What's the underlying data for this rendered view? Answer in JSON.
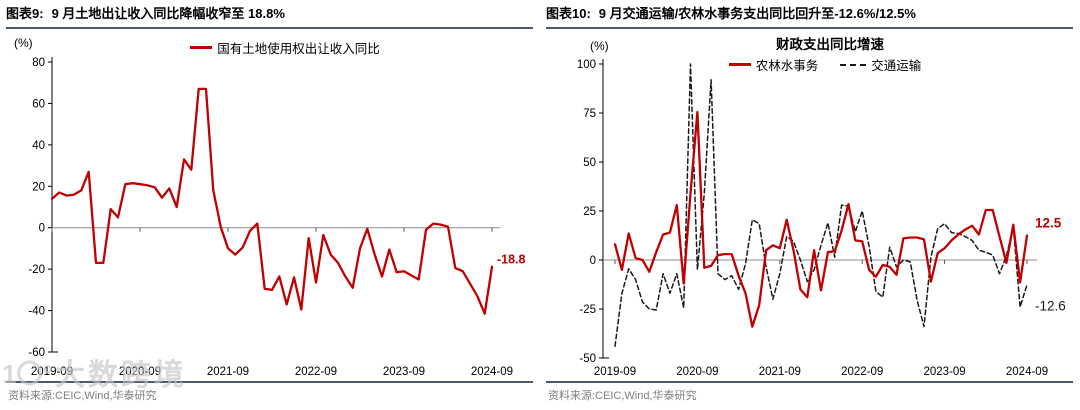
{
  "watermark": {
    "logo_text": "1〇°",
    "text": "大数跨境"
  },
  "chart_data": [
    {
      "type": "line",
      "figure_label": "图表9:",
      "figure_title": "9 月土地出让收入同比降幅收窄至 18.8%",
      "unit": "(%)",
      "source": "资料来源:CEIC,Wind,华泰研究",
      "x_start": "2019-09",
      "x_end": "2024-09",
      "x_interval": "monthly",
      "x_tick_labels": [
        "2019-09",
        "2020-09",
        "2021-09",
        "2022-09",
        "2023-09",
        "2024-09"
      ],
      "ylim": [
        -60,
        80
      ],
      "y_ticks": [
        80,
        60,
        40,
        20,
        0,
        -20,
        -40,
        -60
      ],
      "grid": "zero-line-only",
      "legend_position": "top",
      "series": [
        {
          "name": "国有土地使用权出让收入同比",
          "color": "#c00000",
          "line_style": "solid",
          "end_label": "-18.8",
          "values": [
            14,
            17,
            15.5,
            16,
            18,
            27,
            -17,
            -17,
            9,
            5,
            21,
            21.5,
            21,
            20.5,
            19.5,
            14.5,
            19,
            10,
            33,
            28,
            67,
            67,
            18,
            0.5,
            -10,
            -13,
            -9.5,
            -1.5,
            2,
            -29.5,
            -30,
            -23.5,
            -37,
            -24,
            -39.5,
            -5,
            -26.5,
            -3.5,
            -13,
            -17,
            -23.5,
            -29,
            -10,
            -0.5,
            -13,
            -23.5,
            -10.5,
            -21.5,
            -21,
            -23,
            -25,
            -1,
            2,
            1.5,
            0.5,
            -19.5,
            -21,
            -27,
            -33,
            -41.5,
            -18.8
          ]
        }
      ]
    },
    {
      "type": "line",
      "figure_label": "图表10:",
      "figure_title": "9 月交通运输/农林水事务支出同比回升至-12.6%/12.5%",
      "title": "财政支出同比增速",
      "unit": "(%)",
      "source": "资料来源:CEIC,Wind,华泰研究",
      "x_start": "2019-09",
      "x_end": "2024-09",
      "x_interval": "monthly",
      "x_tick_labels": [
        "2019-09",
        "2020-09",
        "2021-09",
        "2022-09",
        "2023-09",
        "2024-09"
      ],
      "ylim": [
        -50,
        100
      ],
      "y_ticks": [
        100,
        75,
        50,
        25,
        0,
        -25,
        -50
      ],
      "grid": "zero-line-only",
      "legend_position": "top",
      "series": [
        {
          "name": "农林水事务",
          "color": "#c00000",
          "line_style": "solid",
          "end_label": "12.5",
          "values": [
            8,
            -5,
            13.5,
            1,
            0,
            -6,
            4,
            13,
            14,
            28,
            -12,
            34,
            75.5,
            -4,
            -3,
            2.5,
            3,
            3,
            -8,
            -17,
            -34,
            -23,
            5,
            7.5,
            6,
            20.5,
            5,
            -15,
            -19,
            5,
            -15.5,
            4,
            4.5,
            15,
            28.5,
            10,
            9.5,
            -5,
            -8.5,
            -2.5,
            -3.5,
            -7.5,
            11,
            11.5,
            11.5,
            10.5,
            -11,
            3.5,
            6,
            10,
            13,
            15.5,
            17.5,
            13,
            25.5,
            25.5,
            12,
            -1.5,
            18,
            -11.5,
            12.5
          ]
        },
        {
          "name": "交通运输",
          "color": "#1a1a1a",
          "line_style": "dashed",
          "end_label": "-12.6",
          "values": [
            -44,
            -17,
            -4.5,
            -10,
            -21.5,
            -25,
            -25.5,
            -7,
            -17,
            -7,
            -24.5,
            100,
            -5,
            34,
            92,
            -7,
            -10,
            -8,
            -15,
            -2,
            20.5,
            18.5,
            -3.5,
            -20,
            -7,
            12,
            9.5,
            0,
            -11,
            -5,
            7.5,
            19,
            1.5,
            28,
            27.5,
            14.5,
            25,
            7,
            -16,
            -19,
            6.5,
            -3.5,
            0,
            -1,
            -20.5,
            -34,
            1.5,
            16,
            18.5,
            14,
            13.5,
            12,
            10,
            5,
            4,
            2.5,
            -7,
            2,
            17,
            -24,
            -12.6
          ]
        }
      ]
    }
  ]
}
